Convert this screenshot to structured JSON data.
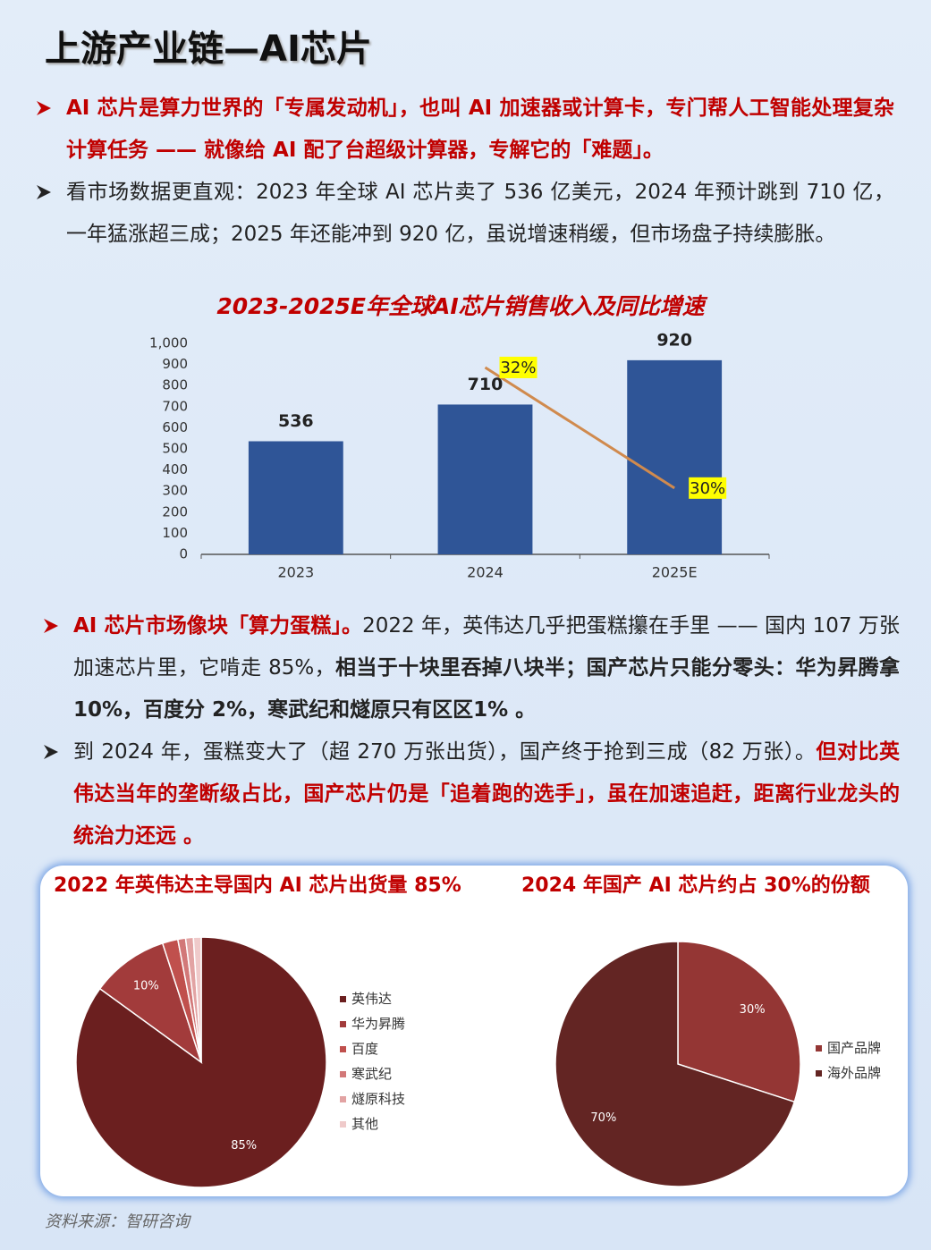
{
  "title": "上游产业链—AI芯片",
  "bullets": [
    {
      "segments": [
        {
          "text": "AI 芯片是算力世界的「专属发动机」，也叫 AI 加速器或计算卡，专门帮人工智能处理复杂计算任务 —— 就像给 AI 配了台超级计算器，专解它的「难题」。",
          "color": "#c00000",
          "bold": true
        }
      ]
    },
    {
      "segments": [
        {
          "text": "看市场数据更直观：2023 年全球 AI 芯片卖了 536 亿美元，2024 年预计跳到 710 亿，一年猛涨超三成；2025 年还能冲到 920 亿，虽说增速稍缓，但市场盘子持续膨胀。",
          "color": "#222222",
          "bold": false
        }
      ]
    },
    {
      "segments": [
        {
          "text": "AI 芯片市场像块「算力蛋糕」。",
          "color": "#c00000",
          "bold": true
        },
        {
          "text": "2022 年，英伟达几乎把蛋糕攥在手里 —— 国内 107 万张加速芯片里，它啃走 85%，",
          "color": "#222222",
          "bold": false
        },
        {
          "text": "相当于十块里吞掉八块半；国产芯片只能分零头：华为昇腾拿 10%，百度分 2%，寒武纪和燧原只有区区1% 。",
          "color": "#222222",
          "bold": true
        }
      ]
    },
    {
      "segments": [
        {
          "text": "到 2024 年，蛋糕变大了（超 270 万张出货），国产终于抢到三成（82 万张）。",
          "color": "#222222",
          "bold": false
        },
        {
          "text": "但对比英伟达当年的垄断级占比，国产芯片仍是「追着跑的选手」，虽在加速追赶，距离行业龙头的统治力还远 。",
          "color": "#c00000",
          "bold": true
        }
      ]
    }
  ],
  "chart_data": [
    {
      "type": "bar",
      "title": "2023-2025E年全球AI芯片销售收入及同比增速",
      "categories": [
        "2023",
        "2024",
        "2025E"
      ],
      "series": [
        {
          "type": "bar",
          "color": "#2f5597",
          "values": [
            536,
            710,
            920
          ]
        },
        {
          "type": "line",
          "axis": "y2",
          "color": "#d08a4e",
          "values": [
            null,
            32,
            30
          ],
          "value_labels": [
            null,
            "32%",
            "30%"
          ],
          "label_background": "#ffff00"
        }
      ],
      "ylim": [
        0,
        1000
      ],
      "yticks": [
        0,
        100,
        200,
        300,
        400,
        500,
        600,
        700,
        800,
        900,
        {
          "value": 1000,
          "label": "1,000"
        }
      ],
      "y2lim": [
        28.9,
        32.4
      ],
      "grid": false
    },
    {
      "type": "pie",
      "title": "2022 年英伟达主导国内 AI 芯片出货量 85%",
      "categories": [
        "英伟达",
        "华为昇腾",
        "百度",
        "寒武纪",
        "燧原科技",
        "其他"
      ],
      "values": [
        85,
        10,
        2,
        1,
        1,
        1
      ],
      "value_labels": [
        "85%",
        "10%",
        null,
        null,
        null,
        null
      ],
      "colors": [
        "#6b1f1f",
        "#a23b3b",
        "#c0504d",
        "#d27878",
        "#e2a3a3",
        "#efcaca"
      ]
    },
    {
      "type": "pie",
      "title": "2024 年国产 AI 芯片约占 30%的份额",
      "categories": [
        "国产品牌",
        "海外品牌"
      ],
      "values": [
        30,
        70
      ],
      "value_labels": [
        "30%",
        "70%"
      ],
      "colors": [
        "#943634",
        "#632523"
      ]
    }
  ],
  "source": "资料来源：智研咨询"
}
